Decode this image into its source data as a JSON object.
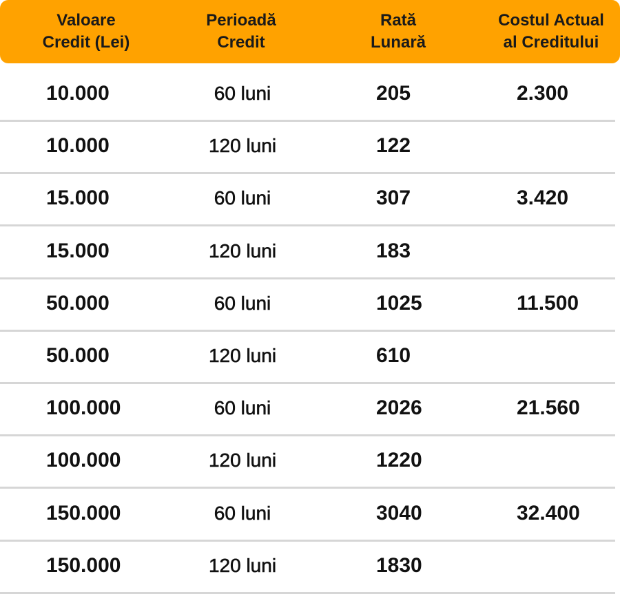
{
  "header": {
    "columns": [
      [
        "Valoare",
        "Credit (Lei)"
      ],
      [
        "Perioadă",
        "Credit"
      ],
      [
        "Rată",
        "Lunară"
      ],
      [
        "Costul Actual",
        "al Creditului"
      ]
    ]
  },
  "table": {
    "rows": [
      [
        "10.000",
        "60 luni",
        "205",
        "2.300"
      ],
      [
        "10.000",
        "120 luni",
        "122"
      ],
      [
        "15.000",
        "60 luni",
        "307",
        "3.420"
      ],
      [
        "15.000",
        "120 luni",
        "183"
      ],
      [
        "50.000",
        "60 luni",
        "1025",
        "11.500"
      ],
      [
        "50.000",
        "120 luni",
        "610"
      ],
      [
        "100.000",
        "60 luni",
        "2026",
        "21.560"
      ],
      [
        "100.000",
        "120 luni",
        "1220"
      ],
      [
        "150.000",
        "60 luni",
        "3040",
        "32.400"
      ],
      [
        "150.000",
        "120 luni",
        "1830"
      ]
    ]
  }
}
